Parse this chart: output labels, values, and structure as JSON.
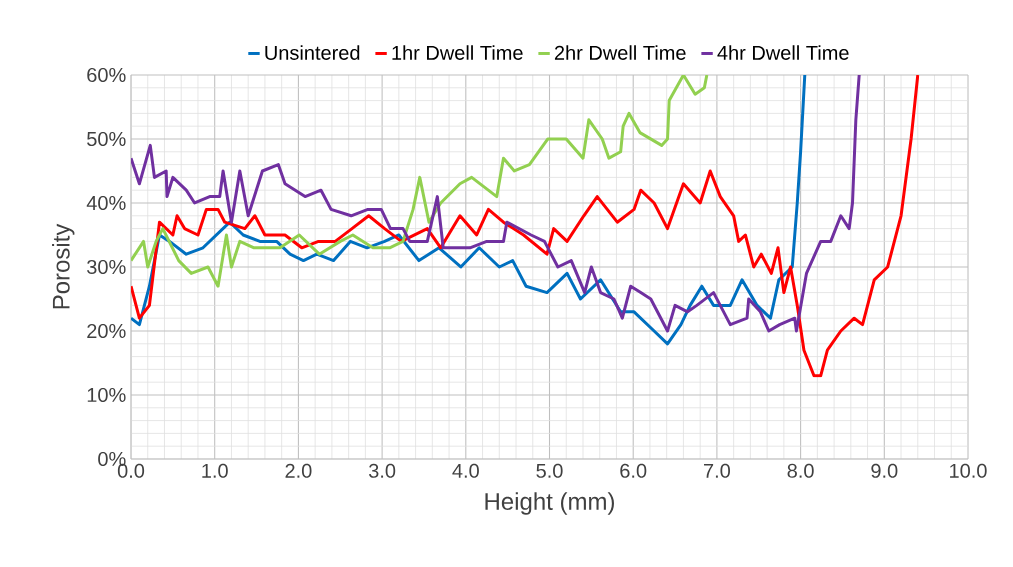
{
  "chart_data": {
    "type": "line",
    "xlabel": "Height (mm)",
    "ylabel": "Porosity",
    "xlim": [
      0,
      10
    ],
    "ylim": [
      0,
      60
    ],
    "xticks": [
      {
        "value": 0,
        "label": "0.0"
      },
      {
        "value": 1,
        "label": "1.0"
      },
      {
        "value": 2,
        "label": "2.0"
      },
      {
        "value": 3,
        "label": "3.0"
      },
      {
        "value": 4,
        "label": "4.0"
      },
      {
        "value": 5,
        "label": "5.0"
      },
      {
        "value": 6,
        "label": "6.0"
      },
      {
        "value": 7,
        "label": "7.0"
      },
      {
        "value": 8,
        "label": "8.0"
      },
      {
        "value": 9,
        "label": "9.0"
      },
      {
        "value": 10,
        "label": "10.0"
      }
    ],
    "yticks": [
      {
        "value": 0,
        "label": "0%"
      },
      {
        "value": 10,
        "label": "10%"
      },
      {
        "value": 20,
        "label": "20%"
      },
      {
        "value": 30,
        "label": "30%"
      },
      {
        "value": 40,
        "label": "40%"
      },
      {
        "value": 50,
        "label": "50%"
      },
      {
        "value": 60,
        "label": "60%"
      }
    ],
    "grid": true,
    "legend": "top",
    "series": [
      {
        "name": "Unsintered",
        "color": "#0070c0",
        "x": [
          0,
          0.1,
          0.22,
          0.34,
          0.46,
          0.66,
          0.86,
          1.02,
          1.18,
          1.34,
          1.54,
          1.74,
          1.9,
          2.06,
          2.22,
          2.42,
          2.62,
          2.82,
          3.03,
          3.2,
          3.44,
          3.68,
          3.94,
          4.16,
          4.4,
          4.56,
          4.72,
          4.97,
          5.21,
          5.37,
          5.61,
          5.85,
          6.01,
          6.25,
          6.41,
          6.57,
          6.68,
          6.82,
          6.96,
          7.16,
          7.3,
          7.48,
          7.64,
          7.74,
          7.9,
          7.96,
          8.0,
          8.05
        ],
        "values": [
          22,
          21,
          27,
          35,
          34,
          32,
          33,
          35,
          37,
          35,
          34,
          34,
          32,
          31,
          32,
          31,
          34,
          33,
          34,
          35,
          31,
          33,
          30,
          33,
          30,
          31,
          27,
          26,
          29,
          25,
          28,
          23,
          23,
          20,
          18,
          21,
          24,
          27,
          24,
          24,
          28,
          24,
          22,
          28,
          30,
          40,
          48,
          60
        ]
      },
      {
        "name": "1hr Dwell Time",
        "color": "#ff0000",
        "x": [
          0,
          0.1,
          0.22,
          0.34,
          0.5,
          0.55,
          0.64,
          0.8,
          0.9,
          1.04,
          1.12,
          1.36,
          1.48,
          1.6,
          1.84,
          2.04,
          2.24,
          2.44,
          2.64,
          2.84,
          3.03,
          3.23,
          3.54,
          3.7,
          3.93,
          4.13,
          4.27,
          4.45,
          4.69,
          4.97,
          5.05,
          5.21,
          5.41,
          5.57,
          5.69,
          5.81,
          6.01,
          6.09,
          6.25,
          6.41,
          6.6,
          6.8,
          6.92,
          7.04,
          7.2,
          7.26,
          7.34,
          7.44,
          7.53,
          7.65,
          7.73,
          7.8,
          7.88,
          7.96,
          8.04,
          8.16,
          8.24,
          8.32,
          8.48,
          8.64,
          8.74,
          8.88,
          9.04,
          9.2,
          9.32,
          9.4
        ],
        "values": [
          27,
          22,
          24,
          37,
          35,
          38,
          36,
          35,
          39,
          39,
          37,
          36,
          38,
          35,
          35,
          33,
          34,
          34,
          36,
          38,
          36,
          34,
          36,
          33,
          38,
          35,
          39,
          37,
          35,
          32,
          36,
          34,
          38,
          41,
          39,
          37,
          39,
          42,
          40,
          36,
          43,
          40,
          45,
          41,
          38,
          34,
          35,
          30,
          32,
          29,
          33,
          26,
          30,
          24,
          17,
          13,
          13,
          17,
          20,
          22,
          21,
          28,
          30,
          38,
          50,
          60
        ]
      },
      {
        "name": "2hr Dwell Time",
        "color": "#92d050",
        "x": [
          0,
          0.15,
          0.2,
          0.3,
          0.38,
          0.57,
          0.72,
          0.92,
          1.04,
          1.14,
          1.2,
          1.3,
          1.47,
          1.78,
          2.01,
          2.25,
          2.5,
          2.65,
          2.89,
          3.09,
          3.25,
          3.37,
          3.45,
          3.56,
          3.7,
          3.93,
          4.07,
          4.37,
          4.45,
          4.58,
          4.76,
          4.98,
          5.2,
          5.4,
          5.47,
          5.63,
          5.71,
          5.85,
          5.88,
          5.95,
          6.08,
          6.34,
          6.41,
          6.43,
          6.6,
          6.74,
          6.85,
          6.88
        ],
        "values": [
          31,
          34,
          30,
          34,
          36,
          31,
          29,
          30,
          27,
          35,
          30,
          34,
          33,
          33,
          35,
          32,
          34,
          35,
          33,
          33,
          34,
          39,
          44,
          37,
          40,
          43,
          44,
          41,
          47,
          45,
          46,
          50,
          50,
          47,
          53,
          50,
          47,
          48,
          52,
          54,
          51,
          49,
          50,
          56,
          60,
          57,
          58,
          60
        ]
      },
      {
        "name": "4hr Dwell Time",
        "color": "#7030a0",
        "x": [
          0,
          0.1,
          0.23,
          0.28,
          0.42,
          0.43,
          0.5,
          0.66,
          0.76,
          0.94,
          1.06,
          1.1,
          1.2,
          1.3,
          1.4,
          1.57,
          1.76,
          1.84,
          2.08,
          2.27,
          2.39,
          2.63,
          2.83,
          2.99,
          3.1,
          3.25,
          3.33,
          3.54,
          3.66,
          3.73,
          4.05,
          4.25,
          4.45,
          4.49,
          4.78,
          4.94,
          5.1,
          5.26,
          5.42,
          5.5,
          5.61,
          5.77,
          5.87,
          5.97,
          6.09,
          6.21,
          6.41,
          6.5,
          6.65,
          6.76,
          6.96,
          7.16,
          7.36,
          7.38,
          7.52,
          7.62,
          7.75,
          7.93,
          7.95,
          8.07,
          8.24,
          8.36,
          8.48,
          8.58,
          8.62,
          8.66,
          8.7
        ],
        "values": [
          47,
          43,
          49,
          44,
          45,
          41,
          44,
          42,
          40,
          41,
          41,
          45,
          37,
          45,
          38,
          45,
          46,
          43,
          41,
          42,
          39,
          38,
          39,
          39,
          36,
          36,
          34,
          34,
          41,
          33,
          33,
          34,
          34,
          37,
          35,
          34,
          30,
          31,
          26,
          30,
          26,
          25,
          22,
          27,
          26,
          25,
          20,
          24,
          23,
          24,
          26,
          21,
          22,
          25,
          23,
          20,
          21,
          22,
          20,
          29,
          34,
          34,
          38,
          36,
          40,
          53,
          60
        ]
      }
    ]
  }
}
